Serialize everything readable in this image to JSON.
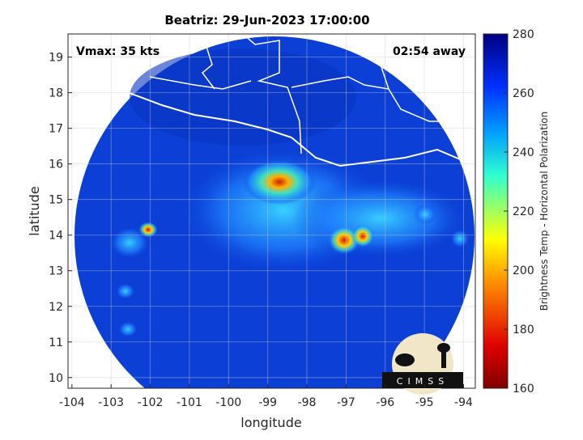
{
  "title": "Beatriz: 29-Jun-2023 17:00:00",
  "annotations": {
    "vmax": "Vmax: 35 kts",
    "time_away": "02:54 away"
  },
  "x_axis": {
    "label": "longitude",
    "lim": [
      -104.1,
      -93.7
    ],
    "ticks": [
      -104,
      -103,
      -102,
      -101,
      -100,
      -99,
      -98,
      -97,
      -96,
      -95,
      -94
    ]
  },
  "y_axis": {
    "label": "latitude",
    "lim": [
      9.7,
      19.65
    ],
    "ticks": [
      10,
      11,
      12,
      13,
      14,
      15,
      16,
      17,
      18,
      19
    ]
  },
  "colorbar": {
    "label": "Brightness Temp - Horizontal Polarization",
    "lim": [
      160,
      280
    ],
    "ticks": [
      160,
      180,
      200,
      220,
      240,
      260,
      280
    ]
  },
  "logo": "CIMSS"
}
